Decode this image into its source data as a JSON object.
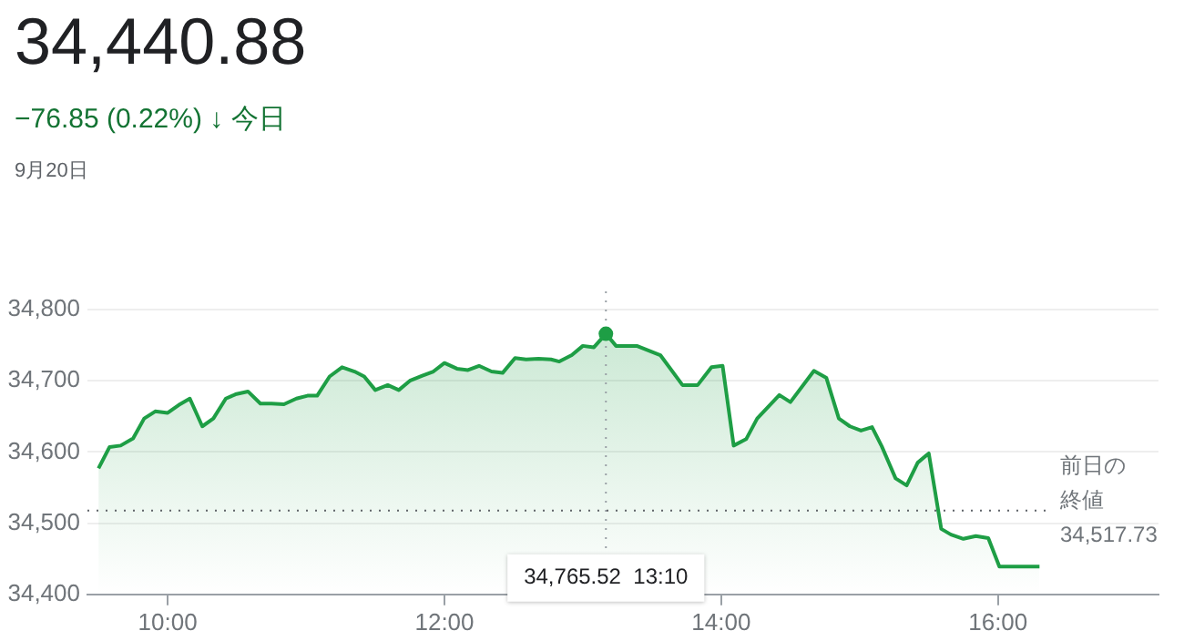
{
  "chart_data": {
    "type": "area",
    "title": "34,440.88",
    "subtitle": "−76.85 (0.22%) ↓ 今日",
    "x": [
      9.5,
      9.58,
      9.66,
      9.75,
      9.83,
      9.91,
      10.0,
      10.08,
      10.16,
      10.25,
      10.33,
      10.42,
      10.49,
      10.58,
      10.67,
      10.75,
      10.84,
      10.93,
      11.01,
      11.08,
      11.17,
      11.26,
      11.35,
      11.42,
      11.5,
      11.59,
      11.67,
      11.75,
      11.84,
      11.92,
      12.0,
      12.09,
      12.17,
      12.25,
      12.34,
      12.42,
      12.51,
      12.59,
      12.68,
      12.77,
      12.83,
      12.92,
      13.0,
      13.08,
      13.1667,
      13.24,
      13.39,
      13.56,
      13.72,
      13.83,
      13.93,
      14.01,
      14.09,
      14.18,
      14.26,
      14.42,
      14.5,
      14.67,
      14.76,
      14.85,
      14.93,
      15.01,
      15.09,
      15.16,
      15.26,
      15.34,
      15.42,
      15.5,
      15.59,
      15.66,
      15.75,
      15.84,
      15.93,
      16.01,
      16.3
    ],
    "series": [
      {
        "color": "#1e9e45",
        "values": [
          34577,
          34607,
          34609,
          34619,
          34647,
          34657,
          34655,
          34666,
          34675,
          34636,
          34647,
          34675,
          34681,
          34685,
          34668,
          34668,
          34667,
          34675,
          34679,
          34679,
          34706,
          34719,
          34713,
          34706,
          34687,
          34694,
          34687,
          34700,
          34707,
          34713,
          34725,
          34717,
          34715,
          34721,
          34713,
          34711,
          34732,
          34730,
          34731,
          34730,
          34727,
          34736,
          34749,
          34747,
          34766,
          34749,
          34749,
          34736,
          34694,
          34694,
          34719,
          34721,
          34609,
          34618,
          34647,
          34680,
          34670,
          34714,
          34704,
          34647,
          34636,
          34630,
          34635,
          34608,
          34563,
          34553,
          34585,
          34598,
          34492,
          34484,
          34478,
          34482,
          34479,
          34439,
          34439
        ]
      }
    ],
    "xlim": [
      9.42,
      17.16
    ],
    "xticks": [
      {
        "value": 10,
        "label": "10:00"
      },
      {
        "value": 12,
        "label": "12:00"
      },
      {
        "value": 14,
        "label": "14:00"
      },
      {
        "value": 16,
        "label": "16:00"
      }
    ],
    "ylim": [
      34400,
      34800
    ],
    "yticks": [
      {
        "value": 34400,
        "label": "34,400"
      },
      {
        "value": 34500,
        "label": "34,500"
      },
      {
        "value": 34600,
        "label": "34,600"
      },
      {
        "value": 34700,
        "label": "34,700"
      },
      {
        "value": 34800,
        "label": "34,800"
      }
    ],
    "ref_lines": [
      {
        "axis": "y",
        "value": 34517.73,
        "label": "前日の終値 34,517.73",
        "line_style": "dotted"
      },
      {
        "axis": "x",
        "value": 13.1667,
        "label": "34,765.52  13:10",
        "color": "#9aa0a6",
        "line_style": "dotted"
      }
    ],
    "annotations": [
      "9月20日"
    ],
    "grid": "y",
    "legend": false,
    "marker": "none",
    "line_style": "solid"
  }
}
